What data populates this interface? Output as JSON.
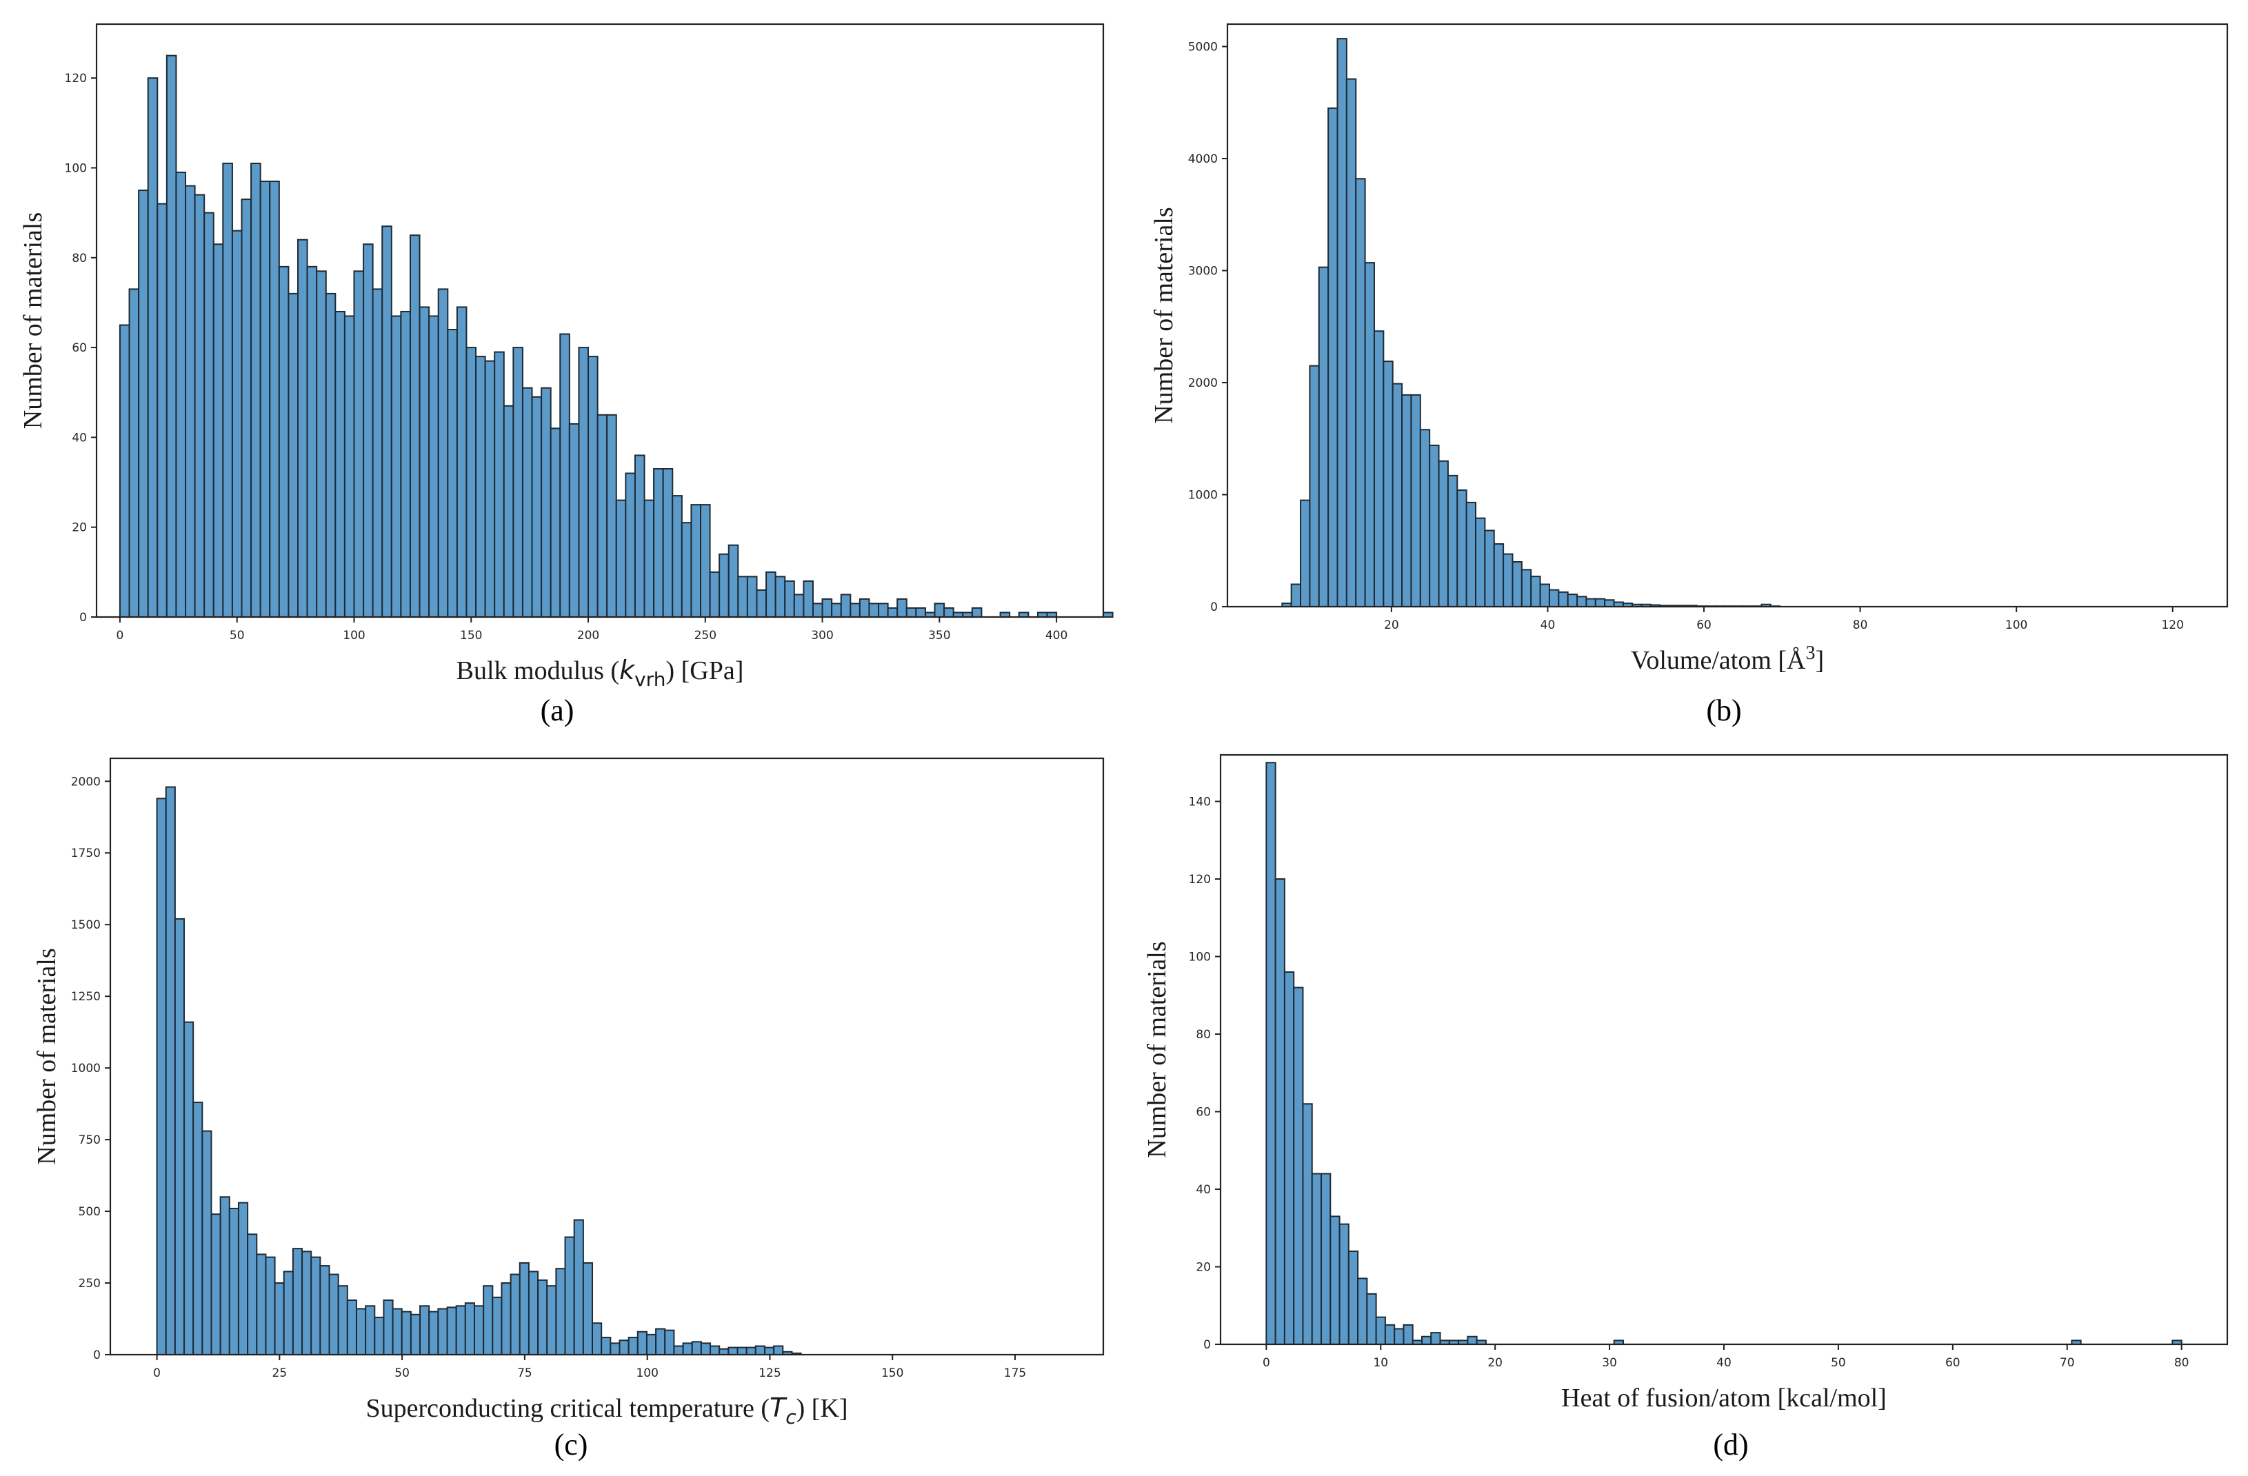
{
  "figure": {
    "style": {
      "bar_fill": "#5b9ac9",
      "bar_edge": "#1f2a33",
      "axis_color": "#222222"
    }
  },
  "chart_data": [
    {
      "type": "bar",
      "panel_label": "(a)",
      "xlabel": "Bulk modulus (",
      "xlabel_var": "k",
      "xlabel_sub": "vrh",
      "xlabel_tail": ") [GPa]",
      "ylabel": "Number of materials",
      "xlim": [
        -10,
        420
      ],
      "ylim": [
        0,
        132
      ],
      "xticks": [
        0,
        50,
        100,
        150,
        200,
        250,
        300,
        350,
        400
      ],
      "yticks": [
        0,
        20,
        40,
        60,
        80,
        100,
        120
      ],
      "bin_start": 0,
      "bin_width": 4,
      "values": [
        65,
        73,
        95,
        120,
        92,
        125,
        99,
        96,
        94,
        90,
        83,
        101,
        86,
        93,
        101,
        97,
        97,
        78,
        72,
        84,
        78,
        77,
        72,
        68,
        67,
        77,
        83,
        73,
        87,
        67,
        68,
        85,
        69,
        67,
        73,
        64,
        69,
        60,
        58,
        57,
        59,
        47,
        60,
        51,
        49,
        51,
        42,
        63,
        43,
        60,
        58,
        45,
        45,
        26,
        32,
        36,
        26,
        33,
        33,
        27,
        21,
        25,
        25,
        10,
        14,
        16,
        9,
        9,
        6,
        10,
        9,
        8,
        5,
        8,
        3,
        4,
        3,
        5,
        3,
        4,
        3,
        3,
        2,
        4,
        2,
        2,
        1,
        3,
        2,
        1,
        1,
        2,
        0,
        0,
        1,
        0,
        1,
        0,
        1,
        1,
        0,
        0,
        0,
        0,
        0,
        1
      ]
    },
    {
      "type": "bar",
      "panel_label": "(b)",
      "xlabel": "Volume/atom [Å",
      "xlabel_sup": "3",
      "xlabel_tail": "]",
      "ylabel": "Number of materials",
      "xlim": [
        -1,
        127
      ],
      "ylim": [
        0,
        5200
      ],
      "xticks": [
        20,
        40,
        60,
        80,
        100,
        120
      ],
      "yticks": [
        0,
        1000,
        2000,
        3000,
        4000,
        5000
      ],
      "bin_start": 6,
      "bin_width": 1.18,
      "values": [
        30,
        200,
        950,
        2150,
        3030,
        4450,
        5070,
        4710,
        3820,
        3070,
        2460,
        2190,
        1990,
        1890,
        1890,
        1580,
        1440,
        1300,
        1170,
        1040,
        930,
        790,
        680,
        560,
        470,
        400,
        330,
        270,
        200,
        150,
        130,
        110,
        90,
        70,
        70,
        60,
        40,
        30,
        20,
        20,
        15,
        10,
        10,
        10,
        10,
        5,
        5,
        5,
        5,
        5,
        5,
        5,
        20,
        5,
        0,
        0,
        0,
        0,
        0,
        0,
        0,
        0,
        0,
        0,
        0,
        0,
        0,
        0,
        0,
        0,
        0,
        0,
        0,
        0,
        0,
        0,
        0,
        0,
        0,
        0,
        0,
        0,
        0,
        0,
        0,
        0,
        0,
        0,
        0,
        0,
        0,
        0,
        0,
        0,
        0,
        0,
        0,
        0,
        0,
        0
      ]
    },
    {
      "type": "bar",
      "panel_label": "(c)",
      "xlabel": "Superconducting critical temperature (",
      "xlabel_var": "T",
      "xlabel_sub": "c",
      "xlabel_tail": ") [K]",
      "ylabel": "Number of materials",
      "xlim": [
        -9.5,
        193
      ],
      "ylim": [
        0,
        2080
      ],
      "xticks": [
        0,
        25,
        50,
        75,
        100,
        125,
        150,
        175
      ],
      "yticks": [
        0,
        250,
        500,
        750,
        1000,
        1250,
        1500,
        1750,
        2000
      ],
      "bin_start": 0,
      "bin_width": 1.85,
      "values": [
        1940,
        1980,
        1520,
        1160,
        880,
        780,
        490,
        550,
        510,
        530,
        420,
        350,
        340,
        250,
        290,
        370,
        360,
        340,
        310,
        280,
        240,
        190,
        160,
        170,
        130,
        190,
        160,
        150,
        140,
        170,
        150,
        160,
        165,
        170,
        180,
        170,
        240,
        200,
        250,
        280,
        320,
        290,
        260,
        240,
        300,
        410,
        470,
        320,
        110,
        60,
        40,
        50,
        60,
        80,
        70,
        90,
        85,
        30,
        40,
        45,
        40,
        30,
        20,
        25,
        25,
        25,
        30,
        25,
        30,
        10,
        5,
        0,
        0,
        0,
        0,
        0,
        0,
        0,
        0,
        0,
        0,
        0,
        0,
        0,
        0,
        0,
        0,
        0,
        0,
        0,
        0,
        0,
        0,
        0,
        0,
        0,
        0,
        0,
        0,
        0
      ]
    },
    {
      "type": "bar",
      "panel_label": "(d)",
      "xlabel": "Heat of fusion/atom [kcal/mol]",
      "ylabel": "Number of materials",
      "xlim": [
        -4,
        84
      ],
      "ylim": [
        0,
        152
      ],
      "xticks": [
        0,
        10,
        20,
        30,
        40,
        50,
        60,
        70,
        80
      ],
      "yticks": [
        0,
        20,
        40,
        60,
        80,
        100,
        120,
        140
      ],
      "bin_start": 0,
      "bin_width": 0.8,
      "values": [
        150,
        120,
        96,
        92,
        62,
        44,
        44,
        33,
        31,
        24,
        17,
        13,
        7,
        5,
        4,
        5,
        1,
        2,
        3,
        1,
        1,
        1,
        2,
        1,
        0,
        0,
        0,
        0,
        0,
        0,
        0,
        0,
        0,
        0,
        0,
        0,
        0,
        0,
        1,
        0,
        0,
        0,
        0,
        0,
        0,
        0,
        0,
        0,
        0,
        0,
        0,
        0,
        0,
        0,
        0,
        0,
        0,
        0,
        0,
        0,
        0,
        0,
        0,
        0,
        0,
        0,
        0,
        0,
        0,
        0,
        0,
        0,
        0,
        0,
        0,
        0,
        0,
        0,
        0,
        0,
        0,
        0,
        0,
        0,
        0,
        0,
        0,
        0,
        1,
        0,
        0,
        0,
        0,
        0,
        0,
        0,
        0,
        0,
        0,
        1
      ]
    }
  ]
}
